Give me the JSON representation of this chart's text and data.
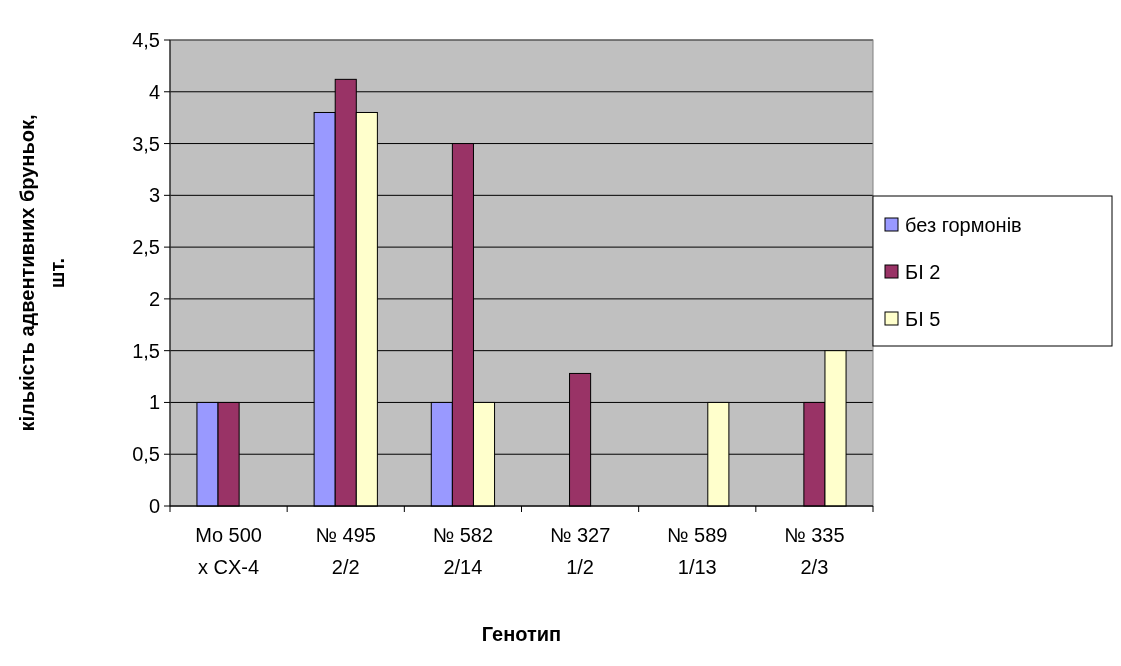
{
  "chart_data": {
    "type": "bar",
    "xlabel": "Генотип",
    "ylabel": "кількість адвентивних бруньок, шт.",
    "categories": [
      "Mo 500 x CX-4",
      "№ 495 2/2",
      "№ 582 2/14",
      "№ 327 1/2",
      "№ 589 1/13",
      "№ 335 2/3"
    ],
    "series": [
      {
        "name": "без гормонів",
        "color": "#9999ff",
        "values": [
          1,
          3.8,
          1,
          0,
          0,
          0
        ]
      },
      {
        "name": "БІ 2",
        "color": "#993366",
        "values": [
          1,
          4.12,
          3.5,
          1.28,
          0,
          1
        ]
      },
      {
        "name": "БІ 5",
        "color": "#ffffcc",
        "values": [
          0,
          3.8,
          1,
          0,
          1,
          1.5
        ]
      }
    ],
    "ylim": [
      0,
      4.5
    ],
    "yticks": [
      0,
      {
        "value": 0.5,
        "label": "0,5"
      },
      1,
      {
        "value": 1.5,
        "label": "1,5"
      },
      2,
      {
        "value": 2.5,
        "label": "2,5"
      },
      3,
      {
        "value": 3.5,
        "label": "3,5"
      },
      4,
      {
        "value": 4.5,
        "label": "4,5"
      }
    ],
    "grid": "y",
    "legend": "right"
  }
}
